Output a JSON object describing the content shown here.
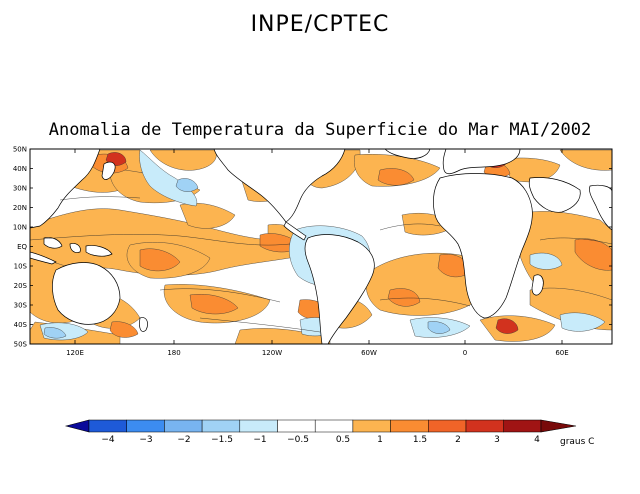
{
  "header": {
    "org": "INPE/CPTEC"
  },
  "map": {
    "title": "Anomalia de Temperatura da Superficie do Mar MAI/2002",
    "lat_labels": [
      "50N",
      "40N",
      "30N",
      "20N",
      "10N",
      "EQ",
      "10S",
      "20S",
      "30S",
      "40S",
      "50S"
    ],
    "lon_labels": [
      "120E",
      "180",
      "120W",
      "60W",
      "0",
      "60E"
    ]
  },
  "colorbar": {
    "labels": [
      "-4",
      "-3",
      "-2",
      "-1.5",
      "-1",
      "-0.5",
      "0.5",
      "1",
      "1.5",
      "2",
      "3",
      "4"
    ],
    "colors": [
      "#0a0a9a",
      "#1e5ad8",
      "#3c8cf0",
      "#78b4f0",
      "#a0d2f5",
      "#c8ebfa",
      "#ffffff",
      "#fcb450",
      "#fa8c32",
      "#f06428",
      "#d2321e",
      "#a01414",
      "#780a0a"
    ],
    "unit": "graus C"
  }
}
